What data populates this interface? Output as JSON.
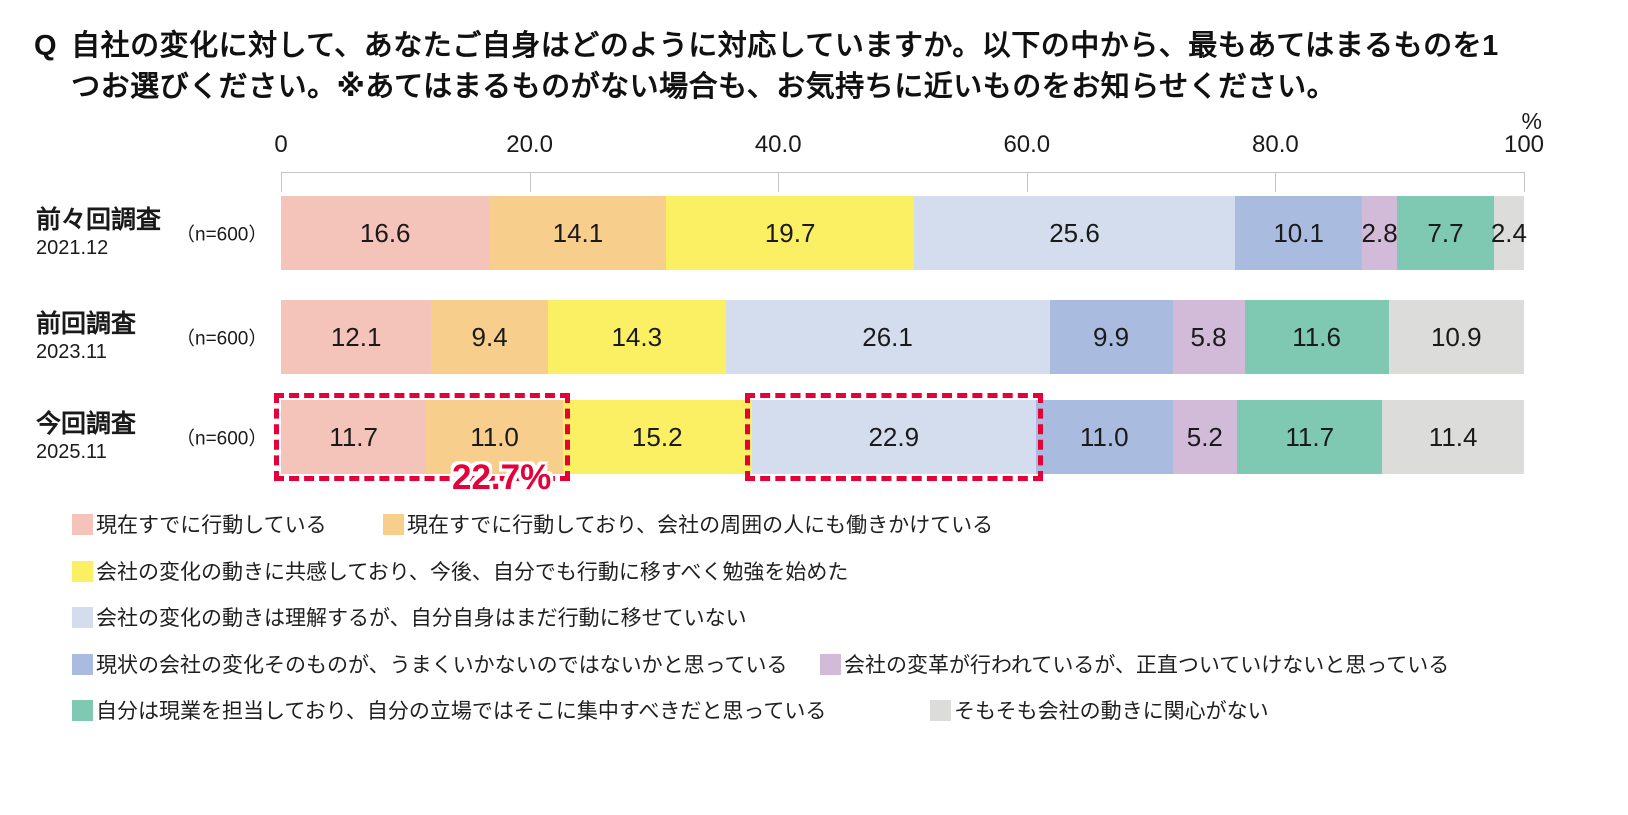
{
  "title": {
    "prefix": "Q",
    "lines": [
      "自社の変化に対して、あなたご自身はどのように対応していますか。以下の中から、最もあてはまるものを1",
      "つお選びください。※あてはまるものがない場合も、お気持ちに近いものをお知らせください。"
    ]
  },
  "chart_data": {
    "type": "bar",
    "variant": "horizontal-stacked-percent",
    "title": "自社の変化への対応（調査回別）",
    "x_axis": {
      "ticks": [
        "0",
        "20.0",
        "40.0",
        "60.0",
        "80.0",
        "100"
      ],
      "range": [
        0,
        100
      ],
      "unit": "%"
    },
    "grid": false,
    "legend_position": "bottom",
    "categories": [
      {
        "label": "現在すでに行動している",
        "color": "#F4C3B9"
      },
      {
        "label": "現在すでに行動しており、会社の周囲の人にも働きかけている",
        "color": "#F8CE8D"
      },
      {
        "label": "会社の変化の動きに共感しており、今後、自分でも行動に移すべく勉強を始めた",
        "color": "#FBF063"
      },
      {
        "label": "会社の変化の動きは理解するが、自分自身はまだ行動に移せていない",
        "color": "#D4DDEE"
      },
      {
        "label": "現状の会社の変化そのものが、うまくいかないのではないかと思っている",
        "color": "#A9BCDF"
      },
      {
        "label": "会社の変革が行われているが、正直ついていけないと思っている",
        "color": "#D2BBD9"
      },
      {
        "label": "自分は現業を担当しており、自分の立場ではそこに集中すべきだと思っている",
        "color": "#7FC9B3"
      },
      {
        "label": "そもそも会社の動きに関心がない",
        "color": "#DCDCDB"
      }
    ],
    "rows": [
      {
        "label": "前々回調査",
        "date": "2021.12",
        "n": "（n=600）",
        "values": [
          16.6,
          14.1,
          19.7,
          25.6,
          10.1,
          2.8,
          7.7,
          2.4
        ]
      },
      {
        "label": "前回調査",
        "date": "2023.11",
        "n": "（n=600）",
        "values": [
          12.1,
          9.4,
          14.3,
          26.1,
          9.9,
          5.8,
          11.6,
          10.9
        ]
      },
      {
        "label": "今回調査",
        "date": "2025.11",
        "n": "（n=600）",
        "values": [
          11.7,
          11.0,
          15.2,
          22.9,
          11.0,
          5.2,
          11.7,
          11.4
        ]
      }
    ],
    "annotations": [
      {
        "type": "dashed-box",
        "row": 2,
        "segments": [
          0,
          1
        ],
        "label": "22.7%",
        "color": "#E60039"
      },
      {
        "type": "dashed-box",
        "row": 2,
        "segments": [
          3
        ],
        "label": "",
        "color": "#E60039"
      }
    ]
  }
}
